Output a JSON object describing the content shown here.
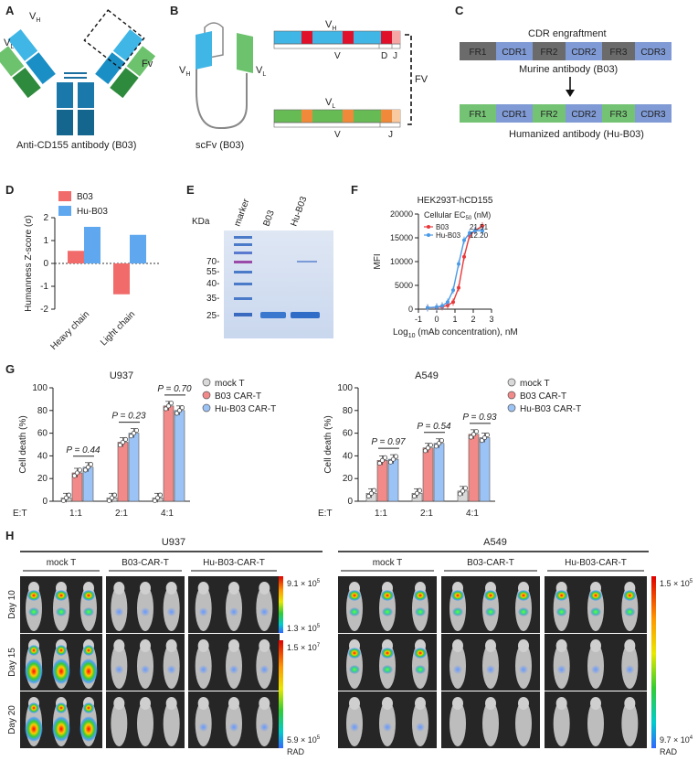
{
  "panel_labels": {
    "a": "A",
    "b": "B",
    "c": "C",
    "d": "D",
    "e": "E",
    "f": "F",
    "g": "G",
    "h": "H"
  },
  "panel_a": {
    "vh": "V",
    "vh_sub": "H",
    "vl": "V",
    "vl_sub": "L",
    "fv": "Fv",
    "caption": "Anti-CD155 antibody (B03)"
  },
  "panel_b": {
    "vh": "V",
    "vh_sub": "H",
    "vl": "V",
    "vl_sub": "L",
    "caption": "scFv (B03)",
    "bar1_label": "V",
    "bar1_sub": "H",
    "bar1_v": "V",
    "bar1_d": "D",
    "bar1_j": "J",
    "bar2_label": "V",
    "bar2_sub": "L",
    "bar2_v": "V",
    "bar2_j": "J",
    "fv": "FV"
  },
  "panel_c": {
    "title": "CDR engraftment",
    "murine_regions": [
      "FR1",
      "CDR1",
      "FR2",
      "CDR2",
      "FR3",
      "CDR3"
    ],
    "murine_label": "Murine antibody (B03)",
    "human_regions": [
      "FR1",
      "CDR1",
      "FR2",
      "CDR2",
      "FR3",
      "CDR3"
    ],
    "human_label": "Humanized antibody (Hu-B03)"
  },
  "panel_d": {
    "ylabel": "Humanness Z-score (σ)",
    "legend": [
      "B03",
      "Hu-B03"
    ],
    "categories": [
      "Heavy chain",
      "Light chain"
    ],
    "yticks": [
      "2",
      "1",
      "0",
      "-1",
      "-2"
    ]
  },
  "panel_e": {
    "kda": "KDa",
    "lanes": [
      "marker",
      "B03",
      "Hu-B03"
    ],
    "markers": [
      "70-",
      "55-",
      "40-",
      "35-",
      "25-"
    ]
  },
  "panel_f": {
    "title": "HEK293T-hCD155",
    "legend_title": "Cellular EC",
    "legend_sub": "50",
    "legend_unit": " (nM)",
    "series": [
      {
        "name": "B03",
        "ec50": "21.51"
      },
      {
        "name": "Hu-B03",
        "ec50": "12.20"
      }
    ],
    "ylabel": "MFI",
    "xlabel_pre": "Log",
    "xlabel_sub": "10",
    "xlabel_post": " (mAb concentration), nM",
    "yticks": [
      "20000",
      "15000",
      "10000",
      "5000",
      "0"
    ],
    "xticks": [
      "-1",
      "0",
      "1",
      "2",
      "3"
    ]
  },
  "panel_g": {
    "left_title": "U937",
    "right_title": "A549",
    "ylabel": "Cell death (%)",
    "yticks": [
      "100",
      "80",
      "60",
      "40",
      "20",
      "0"
    ],
    "et_label": "E:T",
    "ratios": [
      "1:1",
      "2:1",
      "4:1"
    ],
    "legend": [
      "mock T",
      "B03 CAR-T",
      "Hu-B03 CAR-T"
    ],
    "left_p": [
      "P = 0.44",
      "P = 0.23",
      "P = 0.70"
    ],
    "right_p": [
      "P = 0.97",
      "P = 0.54",
      "P = 0.93"
    ]
  },
  "panel_h": {
    "left_title": "U937",
    "right_title": "A549",
    "groups": [
      "mock T",
      "B03-CAR-T",
      "Hu-B03-CAR-T"
    ],
    "days": [
      "Day 10",
      "Day 15",
      "Day 20"
    ],
    "scale1_top": "9.1 × 10",
    "scale1_top_exp": "5",
    "scale1_bot": "1.3 × 10",
    "scale1_bot_exp": "5",
    "scale2_top": "1.5 × 10",
    "scale2_top_exp": "7",
    "scale2_bot": "5.9 × 10",
    "scale2_bot_exp": "5",
    "scale3_top": "1.5 × 10",
    "scale3_top_exp": "5",
    "scale3_bot": "9.7 × 10",
    "scale3_bot_exp": "4",
    "rad": "RAD"
  },
  "chart_data": [
    {
      "type": "bar",
      "categories": [
        "Heavy chain",
        "Light chain"
      ],
      "series": [
        {
          "name": "B03",
          "values": [
            0.55,
            -1.35
          ]
        },
        {
          "name": "Hu-B03",
          "values": [
            1.6,
            1.25
          ]
        }
      ],
      "ylabel": "Humanness Z-score (σ)",
      "ylim": [
        -2,
        2
      ]
    },
    {
      "type": "line",
      "title": "HEK293T-hCD155",
      "xlabel": "Log10 (mAb concentration), nM",
      "ylabel": "MFI",
      "xlim": [
        -1,
        3
      ],
      "ylim": [
        0,
        20000
      ],
      "series": [
        {
          "name": "B03",
          "x": [
            -0.5,
            0,
            0.3,
            0.6,
            0.9,
            1.2,
            1.5,
            1.8,
            2.1,
            2.5
          ],
          "y": [
            300,
            400,
            500,
            800,
            1500,
            4500,
            11000,
            15500,
            16500,
            17500
          ]
        },
        {
          "name": "Hu-B03",
          "x": [
            -0.5,
            0,
            0.3,
            0.6,
            0.9,
            1.2,
            1.5,
            1.8,
            2.1,
            2.5
          ],
          "y": [
            300,
            450,
            700,
            1500,
            4000,
            9500,
            14500,
            16000,
            16500,
            16500
          ]
        }
      ]
    },
    {
      "type": "bar",
      "title": "U937",
      "categories": [
        "1:1",
        "2:1",
        "4:1"
      ],
      "series": [
        {
          "name": "mock T",
          "values": [
            3,
            3,
            3
          ]
        },
        {
          "name": "B03 CAR-T",
          "values": [
            25,
            52,
            84
          ]
        },
        {
          "name": "Hu-B03 CAR-T",
          "values": [
            30,
            60,
            80
          ]
        }
      ],
      "ylabel": "Cell death (%)",
      "ylim": [
        0,
        100
      ]
    },
    {
      "type": "bar",
      "title": "A549",
      "categories": [
        "1:1",
        "2:1",
        "4:1"
      ],
      "series": [
        {
          "name": "mock T",
          "values": [
            7,
            7,
            9
          ]
        },
        {
          "name": "B03 CAR-T",
          "values": [
            36,
            47,
            59
          ]
        },
        {
          "name": "Hu-B03 CAR-T",
          "values": [
            37,
            51,
            56
          ]
        }
      ],
      "ylabel": "Cell death (%)",
      "ylim": [
        0,
        100
      ]
    }
  ]
}
